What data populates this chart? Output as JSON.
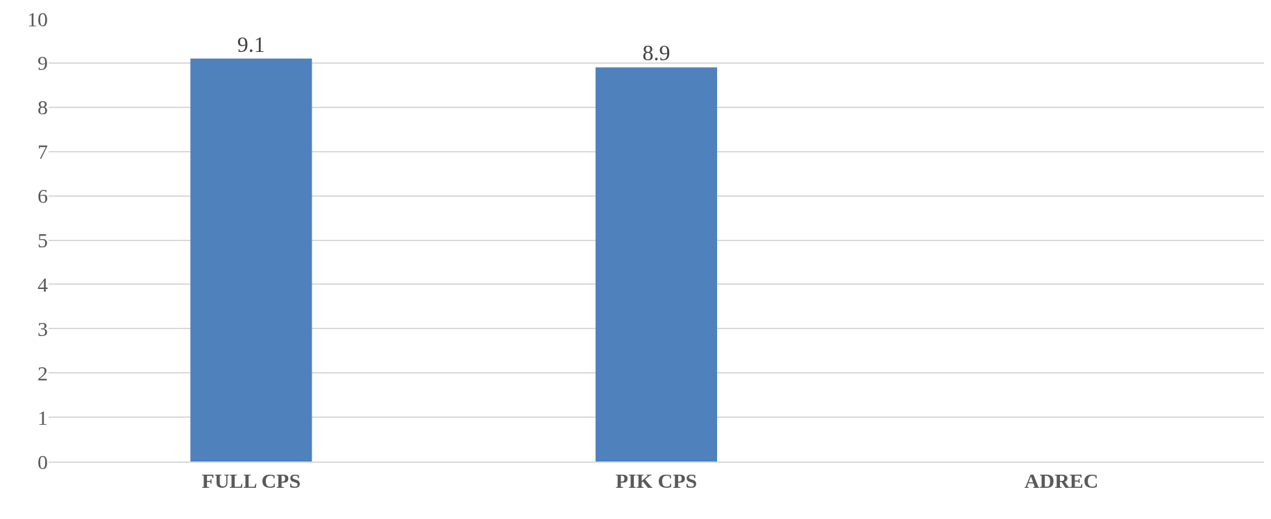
{
  "chart_data": {
    "type": "bar",
    "categories": [
      "FULL CPS",
      "PIK CPS",
      "ADREC"
    ],
    "values": [
      9.1,
      8.9,
      null
    ],
    "color": "#4f81bd",
    "data_labels": true,
    "ylim": [
      0,
      10
    ],
    "yticks": [
      0,
      1,
      2,
      3,
      4,
      5,
      6,
      7,
      8,
      9,
      10
    ],
    "grid": "y",
    "legend": false
  }
}
